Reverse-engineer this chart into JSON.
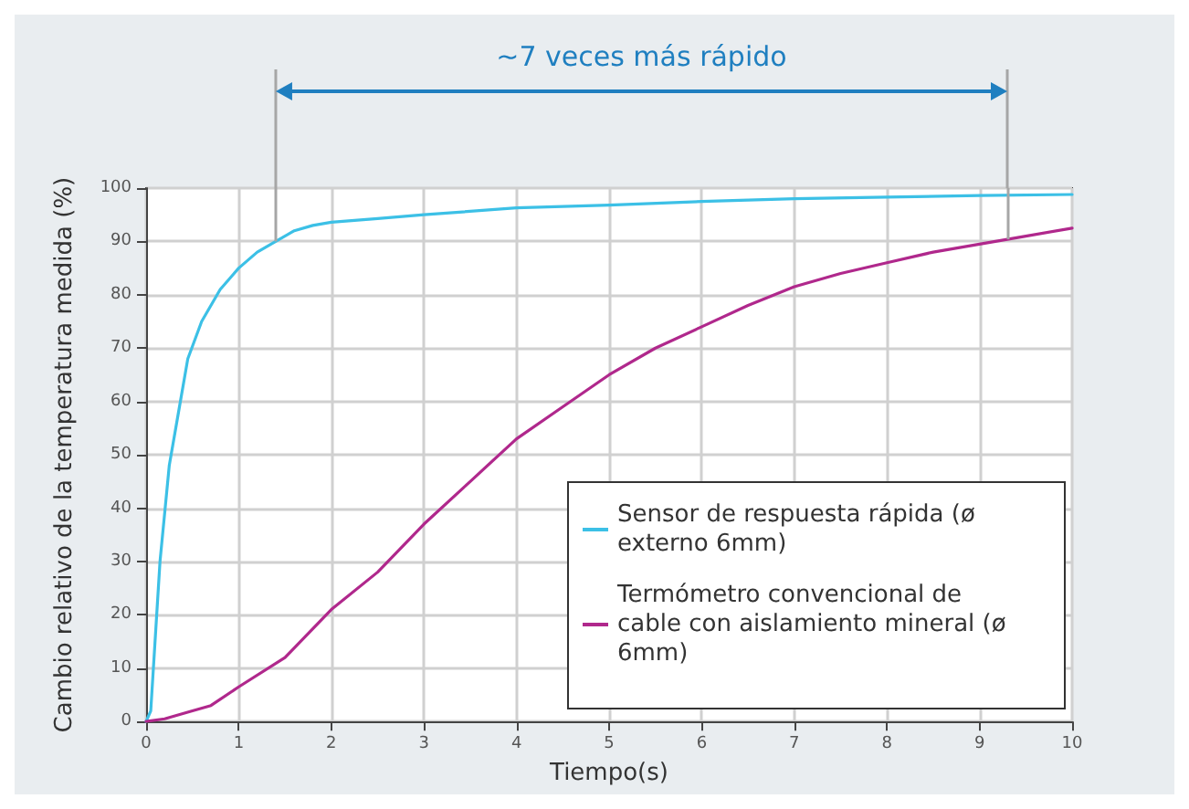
{
  "chart_data": {
    "type": "line",
    "xlabel": "Tiempo(s)",
    "ylabel": "Cambio relativo de la temperatura medida (%)",
    "annotations": [
      "~7 veces más rápido"
    ],
    "x": [
      0,
      0.05,
      0.15,
      0.25,
      0.35,
      0.45,
      0.6,
      0.7,
      0.8,
      1,
      1.2,
      1.4,
      1.6,
      1.8,
      2,
      2.5,
      3,
      4,
      5,
      6,
      7,
      8,
      9,
      10
    ],
    "series": [
      {
        "name": "Sensor de respuesta rápida (ø externo 6mm)",
        "color": "#3cc0e6",
        "values": [
          0,
          2,
          30,
          48,
          58,
          68,
          75,
          78,
          81,
          85,
          88,
          90,
          92,
          93,
          93.6,
          94.3,
          95,
          96.3,
          96.8,
          97.5,
          98,
          98.3,
          98.6,
          98.8
        ]
      },
      {
        "name": "Termómetro convencional de cable con aislamiento mineral (ø 6mm)",
        "color": "#b0288c",
        "x": [
          0,
          0.2,
          0.5,
          0.7,
          1,
          1.5,
          2,
          2.5,
          3,
          3.5,
          4,
          4.5,
          5,
          5.5,
          6,
          6.5,
          7,
          7.5,
          8,
          8.5,
          9,
          9.5,
          10
        ],
        "values": [
          0,
          0.5,
          2,
          3,
          6.5,
          12,
          21,
          28,
          37,
          45,
          53,
          59,
          65,
          70,
          74,
          78,
          81.5,
          84,
          86,
          88,
          89.5,
          91,
          92.5
        ]
      }
    ],
    "xlim": [
      0,
      10
    ],
    "xticks": [
      0,
      1,
      2,
      3,
      4,
      5,
      6,
      7,
      8,
      9,
      10
    ],
    "ylim": [
      0,
      100
    ],
    "yticks": [
      0,
      10,
      20,
      30,
      40,
      50,
      60,
      70,
      80,
      90,
      100
    ],
    "ref_lines": [
      {
        "axis": "x",
        "value": 1.4,
        "color": "#a6a6a6"
      },
      {
        "axis": "x",
        "value": 9.3,
        "color": "#a6a6a6"
      }
    ],
    "grid": true,
    "legend": "bottom right",
    "marker": "none",
    "line_style": "solid"
  }
}
